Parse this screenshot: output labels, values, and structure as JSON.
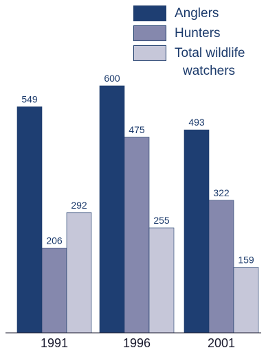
{
  "chart_data": {
    "type": "bar",
    "categories": [
      "1991",
      "1996",
      "2001"
    ],
    "series": [
      {
        "name": "Anglers",
        "values": [
          549,
          600,
          493
        ]
      },
      {
        "name": "Hunters",
        "values": [
          206,
          475,
          322
        ]
      },
      {
        "name": "Total wildlife watchers",
        "values": [
          292,
          255,
          159
        ]
      }
    ],
    "ylim": [
      0,
      600
    ],
    "grid": false,
    "legend_position": "top-right",
    "colors": [
      "#1e3e72",
      "#8588ad",
      "#c6c7d9"
    ]
  },
  "legend": {
    "items": [
      {
        "label": "Anglers"
      },
      {
        "label": "Hunters"
      },
      {
        "label": "Total wildlife",
        "label2": "watchers"
      }
    ]
  }
}
